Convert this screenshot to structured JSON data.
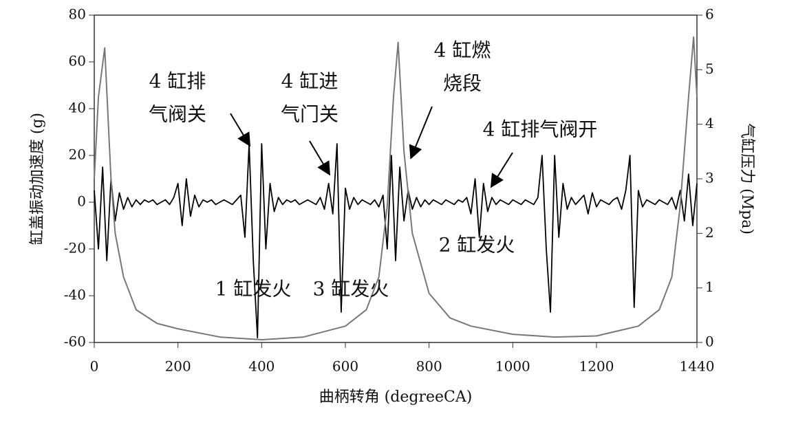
{
  "chart_data": {
    "type": "line",
    "xlabel": "曲柄转角 (degreeCA)",
    "ylabel": "缸盖振动加速度 (g)",
    "y2label": "气缸压力 (Mpa)",
    "xlim": [
      0,
      1440
    ],
    "xticks": [
      0,
      200,
      400,
      600,
      800,
      1000,
      1200,
      1440
    ],
    "ylim": [
      -60,
      80
    ],
    "yticks": [
      -60,
      -40,
      -20,
      0,
      20,
      40,
      60,
      80
    ],
    "y2lim": [
      0,
      6
    ],
    "y2ticks": [
      0,
      1,
      2,
      3,
      4,
      5,
      6
    ],
    "grid": false,
    "series": [
      {
        "name": "缸盖振动加速度",
        "color": "#000000",
        "x": [
          0,
          10,
          20,
          30,
          40,
          50,
          60,
          70,
          80,
          90,
          100,
          110,
          120,
          130,
          140,
          150,
          160,
          170,
          180,
          190,
          200,
          210,
          220,
          230,
          240,
          250,
          260,
          270,
          280,
          290,
          300,
          310,
          320,
          330,
          340,
          350,
          360,
          370,
          380,
          390,
          400,
          410,
          420,
          430,
          440,
          450,
          460,
          470,
          480,
          490,
          500,
          510,
          520,
          530,
          540,
          550,
          560,
          570,
          580,
          590,
          600,
          610,
          620,
          630,
          640,
          650,
          660,
          670,
          680,
          690,
          700,
          710,
          720,
          730,
          740,
          750,
          760,
          770,
          780,
          790,
          800,
          810,
          820,
          830,
          840,
          850,
          860,
          870,
          880,
          890,
          900,
          910,
          920,
          930,
          940,
          950,
          960,
          970,
          980,
          990,
          1000,
          1010,
          1020,
          1030,
          1040,
          1050,
          1060,
          1070,
          1080,
          1090,
          1100,
          1110,
          1120,
          1130,
          1140,
          1150,
          1160,
          1170,
          1180,
          1190,
          1200,
          1210,
          1220,
          1230,
          1240,
          1250,
          1260,
          1270,
          1280,
          1290,
          1300,
          1310,
          1320,
          1330,
          1340,
          1350,
          1360,
          1370,
          1380,
          1390,
          1400,
          1410,
          1420,
          1430,
          1440
        ],
        "values": [
          5,
          -20,
          15,
          -25,
          10,
          -8,
          4,
          -3,
          2,
          -2,
          1,
          -1,
          1,
          0,
          1,
          -1,
          0,
          1,
          -1,
          2,
          8,
          -10,
          10,
          -6,
          3,
          -2,
          1,
          0,
          1,
          -1,
          0,
          1,
          0,
          -1,
          1,
          3,
          -15,
          25,
          -25,
          -58,
          25,
          -20,
          8,
          -4,
          2,
          -1,
          1,
          0,
          1,
          -1,
          0,
          1,
          0,
          -1,
          2,
          -3,
          8,
          -5,
          25,
          -47,
          6,
          -3,
          2,
          -1,
          1,
          0,
          -1,
          1,
          -2,
          3,
          -20,
          20,
          -25,
          15,
          -8,
          5,
          -3,
          2,
          -2,
          1,
          -1,
          1,
          0,
          -1,
          1,
          0,
          -1,
          1,
          0,
          2,
          -5,
          10,
          -15,
          8,
          -4,
          2,
          -1,
          1,
          0,
          -1,
          1,
          0,
          -1,
          1,
          0,
          -1,
          2,
          20,
          -20,
          -47,
          20,
          -15,
          8,
          -3,
          2,
          -1,
          1,
          3,
          -5,
          4,
          -2,
          1,
          0,
          -1,
          1,
          2,
          -3,
          5,
          20,
          -45,
          5,
          -2,
          1,
          0,
          -1,
          1,
          0,
          -1,
          2,
          -3,
          5,
          -8,
          12,
          -10,
          8
        ]
      },
      {
        "name": "气缸压力",
        "color": "#777777",
        "axis": "y2",
        "x": [
          0,
          10,
          25,
          40,
          50,
          70,
          100,
          150,
          200,
          300,
          400,
          500,
          600,
          650,
          680,
          700,
          715,
          726,
          740,
          760,
          800,
          850,
          900,
          1000,
          1100,
          1200,
          1300,
          1350,
          1380,
          1400,
          1420,
          1432,
          1440
        ],
        "values": [
          3.0,
          4.5,
          5.4,
          3.0,
          2.0,
          1.2,
          0.6,
          0.35,
          0.25,
          0.1,
          0.05,
          0.1,
          0.3,
          0.6,
          1.2,
          2.5,
          4.5,
          5.5,
          3.5,
          2.0,
          0.9,
          0.45,
          0.3,
          0.15,
          0.1,
          0.12,
          0.3,
          0.6,
          1.2,
          2.5,
          4.5,
          5.6,
          4.5
        ]
      }
    ],
    "annotations": [
      {
        "lines": [
          "4 缸排",
          "气阀关"
        ]
      },
      {
        "lines": [
          "4 缸进",
          "气门关"
        ]
      },
      {
        "lines": [
          "4 缸燃",
          "烧段"
        ]
      },
      {
        "lines": [
          "4 缸排气阀开"
        ]
      },
      {
        "lines": [
          "2 缸发火"
        ]
      },
      {
        "lines": [
          "1 缸发火"
        ]
      },
      {
        "lines": [
          "3 缸发火"
        ]
      }
    ]
  }
}
